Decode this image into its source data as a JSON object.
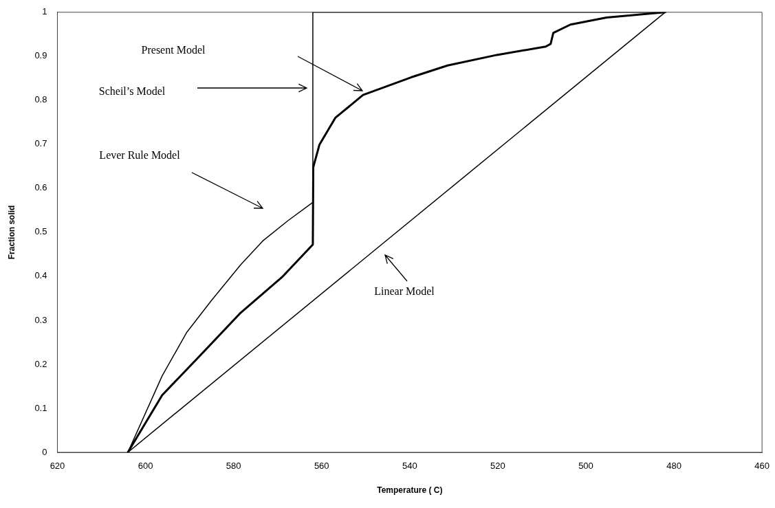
{
  "chart_data": {
    "type": "line",
    "xlabel": "Temperature ( C)",
    "ylabel": "Fraction solid",
    "xlim": [
      620,
      460
    ],
    "xticks": [
      620,
      600,
      580,
      560,
      540,
      520,
      500,
      480,
      460
    ],
    "ylim": [
      0,
      1
    ],
    "yticks": [
      0,
      0.1,
      0.2,
      0.3,
      0.4,
      0.5,
      0.6,
      0.7,
      0.8,
      0.9,
      1
    ],
    "grid": false,
    "legend": false,
    "marker": "none",
    "line_style": "solid",
    "series": [
      {
        "color": "#000000",
        "x": [
          604,
          596.2,
          590.6,
          585.1,
          578.4,
          573.4,
          567.7,
          562,
          562,
          482
        ],
        "values": [
          0,
          0.174,
          0.273,
          0.344,
          0.426,
          0.48,
          0.526,
          0.568,
          1,
          1
        ]
      },
      {
        "color": "#000000",
        "x": [
          604,
          596.2,
          587.3,
          578.4,
          569,
          562,
          561.9,
          560.5,
          556.9,
          550.6,
          539.7,
          531.4,
          520.2,
          509.1,
          508,
          507.4,
          503.5,
          495.3,
          482
        ],
        "values": [
          0,
          0.13,
          0.223,
          0.317,
          0.398,
          0.472,
          0.648,
          0.699,
          0.76,
          0.812,
          0.852,
          0.879,
          0.903,
          0.922,
          0.928,
          0.953,
          0.972,
          0.988,
          1
        ]
      },
      {
        "color": "#000000",
        "x": [
          604,
          482
        ],
        "values": [
          0,
          1
        ]
      }
    ],
    "annotations": [
      "Present Model",
      "Scheil’s Model",
      "Lever Rule Model",
      "Linear Model"
    ]
  }
}
